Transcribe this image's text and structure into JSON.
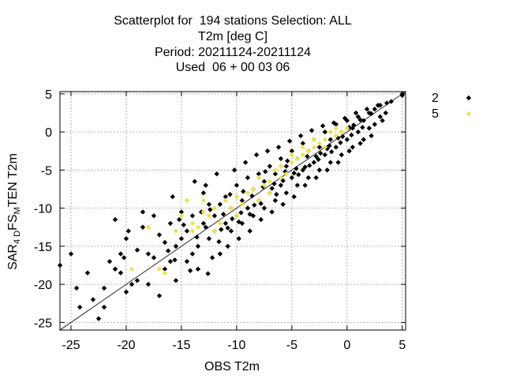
{
  "title_lines": [
    "Scatterplot for  194 stations Selection: ALL",
    "T2m [deg C]",
    "Period: 20211124-20211124",
    "Used  06 + 00 03 06"
  ],
  "colors": {
    "series_2": "#000000",
    "series_5": "#f0e050",
    "grid": "#a0a0a0"
  },
  "chart_data": {
    "type": "scatter",
    "xlabel": "OBS T2m",
    "ylabel": {
      "main": "SAR",
      "sub1": "4 D",
      "mid": "FS",
      "sub2": "M",
      "end": "TEN T2m"
    },
    "xlim": [
      -26,
      5.3
    ],
    "ylim": [
      -26,
      5.3
    ],
    "xticks": [
      -25,
      -20,
      -15,
      -10,
      -5,
      0,
      5
    ],
    "yticks": [
      -25,
      -20,
      -15,
      -10,
      -5,
      0,
      5
    ],
    "grid": true,
    "diagonal": true,
    "legend_position": "right",
    "series": [
      {
        "name": "2",
        "color": "#000000",
        "points": [
          [
            -26,
            -17.5
          ],
          [
            -25,
            -16
          ],
          [
            -24.5,
            -20.5
          ],
          [
            -24.2,
            -23
          ],
          [
            -23,
            -22
          ],
          [
            -22.5,
            -24.5
          ],
          [
            -22,
            -23
          ],
          [
            -21.5,
            -17
          ],
          [
            -21,
            -18
          ],
          [
            -21,
            -11.5
          ],
          [
            -20.5,
            -18.5
          ],
          [
            -20.5,
            -16
          ],
          [
            -20.2,
            -16.5
          ],
          [
            -20,
            -21
          ],
          [
            -20,
            -14
          ],
          [
            -19.8,
            -13
          ],
          [
            -19.5,
            -20
          ],
          [
            -19,
            -19.5
          ],
          [
            -19,
            -15.5
          ],
          [
            -18.5,
            -10.5
          ],
          [
            -18,
            -16
          ],
          [
            -18,
            -20
          ],
          [
            -17.5,
            -16.5
          ],
          [
            -17,
            -21.5
          ],
          [
            -17,
            -13.5
          ],
          [
            -16.5,
            -18
          ],
          [
            -16,
            -17
          ],
          [
            -16,
            -12
          ],
          [
            -15.5,
            -15
          ],
          [
            -15.5,
            -19.5
          ],
          [
            -15,
            -14
          ],
          [
            -15,
            -10.5
          ],
          [
            -14.5,
            -17
          ],
          [
            -14.5,
            -13
          ],
          [
            -14,
            -16
          ],
          [
            -14,
            -11
          ],
          [
            -13.5,
            -18
          ],
          [
            -13.5,
            -15
          ],
          [
            -13,
            -12
          ],
          [
            -13,
            -8
          ],
          [
            -12.5,
            -14
          ],
          [
            -12.5,
            -9.5
          ],
          [
            -12,
            -13
          ],
          [
            -12,
            -11
          ],
          [
            -11.5,
            -16
          ],
          [
            -11.5,
            -9.5
          ],
          [
            -11,
            -12
          ],
          [
            -11,
            -8.5
          ],
          [
            -10.5,
            -13
          ],
          [
            -10.5,
            -10
          ],
          [
            -10,
            -11
          ],
          [
            -10,
            -7
          ],
          [
            -9.5,
            -12
          ],
          [
            -9.5,
            -9
          ],
          [
            -9,
            -10
          ],
          [
            -9,
            -6
          ],
          [
            -8.5,
            -11
          ],
          [
            -8.5,
            -7.5
          ],
          [
            -8,
            -9
          ],
          [
            -8,
            -5.5
          ],
          [
            -7.5,
            -10
          ],
          [
            -7.5,
            -6.5
          ],
          [
            -7,
            -8
          ],
          [
            -7,
            -4.5
          ],
          [
            -6.5,
            -9
          ],
          [
            -6.5,
            -5.5
          ],
          [
            -6,
            -7
          ],
          [
            -6,
            -3.5
          ],
          [
            -5.5,
            -8
          ],
          [
            -5.5,
            -4.5
          ],
          [
            -5,
            -6
          ],
          [
            -5,
            -2.5
          ],
          [
            -4.5,
            -7
          ],
          [
            -4.5,
            -3.5
          ],
          [
            -4,
            -5
          ],
          [
            -4,
            -1.5
          ],
          [
            -3.5,
            -6
          ],
          [
            -3.5,
            -2.5
          ],
          [
            -3,
            -4
          ],
          [
            -3,
            -1
          ],
          [
            -2.5,
            -5
          ],
          [
            -2.5,
            -2
          ],
          [
            -2,
            -3
          ],
          [
            -2,
            0
          ],
          [
            -1.5,
            -4
          ],
          [
            -1.5,
            -1
          ],
          [
            -1,
            -2
          ],
          [
            -1,
            1
          ],
          [
            -0.5,
            -3
          ],
          [
            -0.5,
            0
          ],
          [
            0,
            -1
          ],
          [
            0,
            1.5
          ],
          [
            0.5,
            -2
          ],
          [
            0.5,
            0.5
          ],
          [
            1,
            0
          ],
          [
            1,
            2
          ],
          [
            1.5,
            -1
          ],
          [
            1.5,
            1.5
          ],
          [
            2,
            0.5
          ],
          [
            2,
            2.5
          ],
          [
            2.5,
            1
          ],
          [
            2.5,
            3
          ],
          [
            3,
            2
          ],
          [
            3,
            3.5
          ],
          [
            3.5,
            2.5
          ],
          [
            4,
            4
          ],
          [
            5,
            4.8
          ],
          [
            5,
            5
          ],
          [
            -23.5,
            -18.5
          ],
          [
            -22,
            -20.5
          ],
          [
            -18.5,
            -12.5
          ],
          [
            -17.5,
            -11
          ],
          [
            -16.5,
            -14.5
          ],
          [
            -15.8,
            -8.5
          ],
          [
            -15.2,
            -11.5
          ],
          [
            -13.8,
            -6.5
          ],
          [
            -12.8,
            -7
          ],
          [
            -12.2,
            -16.5
          ],
          [
            -11.8,
            -5.5
          ],
          [
            -10.8,
            -15
          ],
          [
            -10.2,
            -5
          ],
          [
            -9.8,
            -14
          ],
          [
            -9.2,
            -4
          ],
          [
            -8.8,
            -13
          ],
          [
            -8.2,
            -3
          ],
          [
            -7.8,
            -11.5
          ],
          [
            -7.2,
            -2.5
          ],
          [
            -6.8,
            -10.5
          ],
          [
            -6.2,
            -2
          ],
          [
            -5.8,
            -9.5
          ],
          [
            -5.2,
            -1.2
          ],
          [
            -4.8,
            -8.5
          ],
          [
            -4.2,
            -0.5
          ],
          [
            -3.8,
            -7
          ],
          [
            -3.2,
            0.2
          ],
          [
            -2.8,
            -6
          ],
          [
            -2.2,
            0.8
          ],
          [
            -1.8,
            -5
          ],
          [
            -1.2,
            1.2
          ],
          [
            -0.8,
            -4
          ],
          [
            -0.2,
            1.8
          ],
          [
            0.2,
            -2.5
          ],
          [
            0.8,
            2.5
          ],
          [
            1.2,
            -1.5
          ],
          [
            1.8,
            3
          ],
          [
            2.2,
            -0.5
          ],
          [
            2.8,
            3.5
          ],
          [
            3.2,
            1.5
          ],
          [
            -13.2,
            -10.5
          ],
          [
            -12.8,
            -12.5
          ],
          [
            -11.2,
            -10.8
          ],
          [
            -10.6,
            -8.2
          ],
          [
            -9.6,
            -10.6
          ],
          [
            -8.6,
            -8.4
          ],
          [
            -7.6,
            -7.2
          ],
          [
            -6.6,
            -6.8
          ],
          [
            -5.6,
            -5.2
          ],
          [
            -4.6,
            -4.8
          ],
          [
            -3.6,
            -3.2
          ],
          [
            -2.6,
            -3.6
          ],
          [
            -1.6,
            -1.8
          ],
          [
            -0.6,
            -1.4
          ],
          [
            0.4,
            -0.4
          ],
          [
            1.4,
            0.6
          ],
          [
            -14.8,
            -12.2
          ],
          [
            -13.6,
            -13.8
          ],
          [
            -12.4,
            -10.2
          ],
          [
            -11.4,
            -12.8
          ],
          [
            -10.4,
            -11.4
          ],
          [
            -9.4,
            -7.8
          ],
          [
            -8.4,
            -9.6
          ],
          [
            -7.4,
            -5.2
          ],
          [
            -6.4,
            -8.2
          ],
          [
            -5.4,
            -3.8
          ],
          [
            -4.4,
            -5.6
          ],
          [
            -3.4,
            -4.4
          ],
          [
            -2.4,
            -2.8
          ],
          [
            -1.4,
            -2.6
          ],
          [
            -0.4,
            -0.6
          ],
          [
            0.6,
            0.9
          ],
          [
            -16.2,
            -15.6
          ],
          [
            -15.6,
            -16.8
          ],
          [
            -14.2,
            -18.2
          ],
          [
            -12.6,
            -18.6
          ],
          [
            -11.6,
            -14.4
          ],
          [
            -10.8,
            -12.6
          ],
          [
            -9.8,
            -11.8
          ],
          [
            -8.8,
            -10.8
          ],
          [
            -7.8,
            -9.4
          ],
          [
            -6.8,
            -7.4
          ],
          [
            -5.8,
            -6.4
          ],
          [
            -4.8,
            -5.4
          ],
          [
            -3.8,
            -4.6
          ],
          [
            -2.8,
            -3.2
          ],
          [
            -1.8,
            -2.2
          ],
          [
            -0.8,
            -0.8
          ],
          [
            0.2,
            0.6
          ],
          [
            1.2,
            1.6
          ],
          [
            2.2,
            2.4
          ],
          [
            3.6,
            3.8
          ]
        ]
      },
      {
        "name": "5",
        "color": "#f0e050",
        "points": [
          [
            -19.5,
            -18
          ],
          [
            -18,
            -12.5
          ],
          [
            -17,
            -18
          ],
          [
            -16.5,
            -18.5
          ],
          [
            -15.5,
            -13
          ],
          [
            -15,
            -11
          ],
          [
            -14.5,
            -9
          ],
          [
            -14,
            -13
          ],
          [
            -13.5,
            -12.5
          ],
          [
            -13,
            -9
          ],
          [
            -12.5,
            -11
          ],
          [
            -12,
            -13
          ],
          [
            -11.5,
            -12
          ],
          [
            -11,
            -9
          ],
          [
            -10.5,
            -10
          ],
          [
            -10,
            -8.5
          ],
          [
            -9.5,
            -9.5
          ],
          [
            -9,
            -8
          ],
          [
            -8.5,
            -7.5
          ],
          [
            -8,
            -9
          ],
          [
            -7.5,
            -7
          ],
          [
            -7,
            -6.5
          ],
          [
            -6.5,
            -5
          ],
          [
            -6,
            -6
          ],
          [
            -5.5,
            -5.5
          ],
          [
            -5,
            -4
          ],
          [
            -4.5,
            -3.5
          ],
          [
            -4,
            -3
          ],
          [
            -3.5,
            -2.5
          ],
          [
            -3,
            -2
          ],
          [
            -2.5,
            -1.5
          ],
          [
            -2,
            -1
          ],
          [
            -1.5,
            0
          ],
          [
            -1,
            -0.5
          ],
          [
            -0.5,
            0
          ],
          [
            0,
            0.5
          ],
          [
            -6,
            -4.5
          ],
          [
            -5,
            -3
          ],
          [
            -3,
            -1
          ],
          [
            -2,
            -2
          ],
          [
            -1,
            0.5
          ],
          [
            -4,
            -2
          ],
          [
            -7,
            -8
          ],
          [
            -8,
            -6
          ],
          [
            -12,
            -10
          ],
          [
            -13,
            -10.5
          ],
          [
            -14,
            -12
          ],
          [
            -10,
            -11
          ]
        ]
      }
    ]
  }
}
